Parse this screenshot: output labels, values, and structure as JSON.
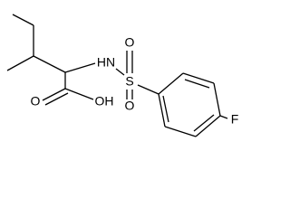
{
  "atoms": [
    {
      "label": "HN"
    },
    {
      "label": "S"
    },
    {
      "label": "O"
    },
    {
      "label": "O"
    },
    {
      "label": "O"
    },
    {
      "label": "OH"
    },
    {
      "label": "F"
    }
  ]
}
